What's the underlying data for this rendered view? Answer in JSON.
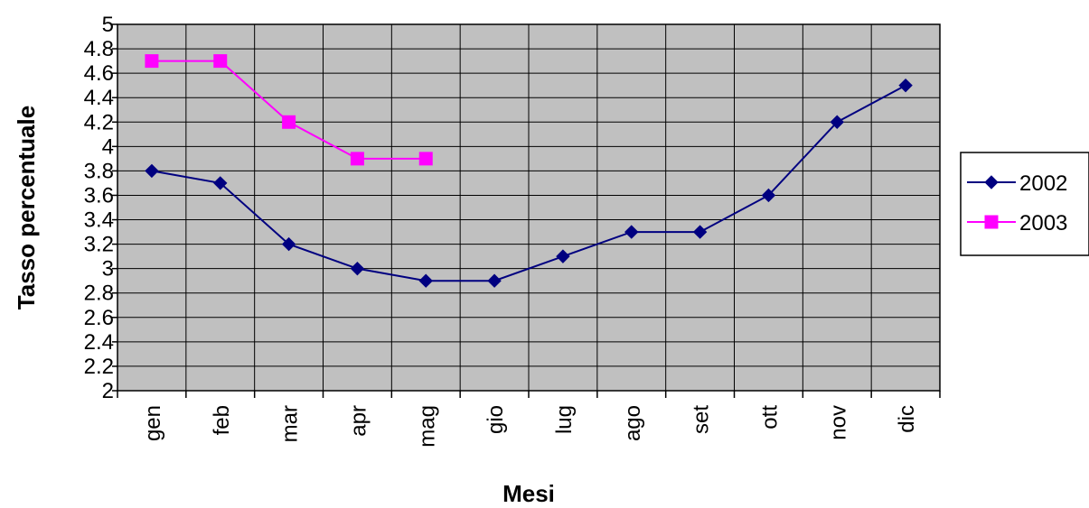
{
  "chart_data": {
    "type": "line",
    "title": "",
    "xlabel": "Mesi",
    "ylabel": "Tasso percentuale",
    "ylim": [
      2,
      5
    ],
    "yticks": [
      "2",
      "2.2",
      "2.4",
      "2.6",
      "2.8",
      "3",
      "3.2",
      "3.4",
      "3.6",
      "3.8",
      "4",
      "4.2",
      "4.4",
      "4.6",
      "4.8",
      "5"
    ],
    "categories": [
      "gen",
      "feb",
      "mar",
      "apr",
      "mag",
      "gio",
      "lug",
      "ago",
      "set",
      "ott",
      "nov",
      "dic"
    ],
    "grid": true,
    "legend_position": "right",
    "series": [
      {
        "name": "2002",
        "color": "#000080",
        "marker": "diamond",
        "values": [
          3.8,
          3.7,
          3.2,
          3.0,
          2.9,
          2.9,
          3.1,
          3.3,
          3.3,
          3.6,
          4.2,
          4.5
        ]
      },
      {
        "name": "2003",
        "color": "#FF00FF",
        "marker": "square",
        "values": [
          4.7,
          4.7,
          4.2,
          3.9,
          3.9,
          null,
          null,
          null,
          null,
          null,
          null,
          null
        ]
      }
    ]
  },
  "colors": {
    "plot_background": "#C0C0C0",
    "grid": "#000000"
  }
}
